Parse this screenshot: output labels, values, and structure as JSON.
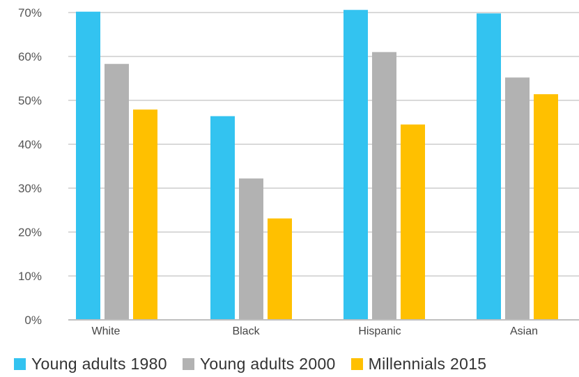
{
  "chart_data": {
    "type": "bar",
    "title": "",
    "xlabel": "",
    "ylabel": "",
    "categories": [
      "White",
      "Black",
      "Hispanic",
      "Asian"
    ],
    "ylim": [
      0,
      70
    ],
    "yticks": [
      "0%",
      "10%",
      "20%",
      "30%",
      "40%",
      "50%",
      "60%",
      "70%"
    ],
    "ytick_values": [
      0,
      10,
      20,
      30,
      40,
      50,
      60,
      70
    ],
    "grid": true,
    "legend_position": "bottom",
    "series": [
      {
        "name": "Young adults 1980",
        "color": "#33c3f0",
        "values": [
          70.2,
          46.4,
          70.6,
          69.8
        ]
      },
      {
        "name": "Young adults 2000",
        "color": "#b2b2b2",
        "values": [
          58.3,
          32.2,
          61.0,
          55.2
        ]
      },
      {
        "name": "Millennials 2015",
        "color": "#ffc000",
        "values": [
          47.9,
          23.1,
          44.5,
          51.4
        ]
      }
    ]
  }
}
